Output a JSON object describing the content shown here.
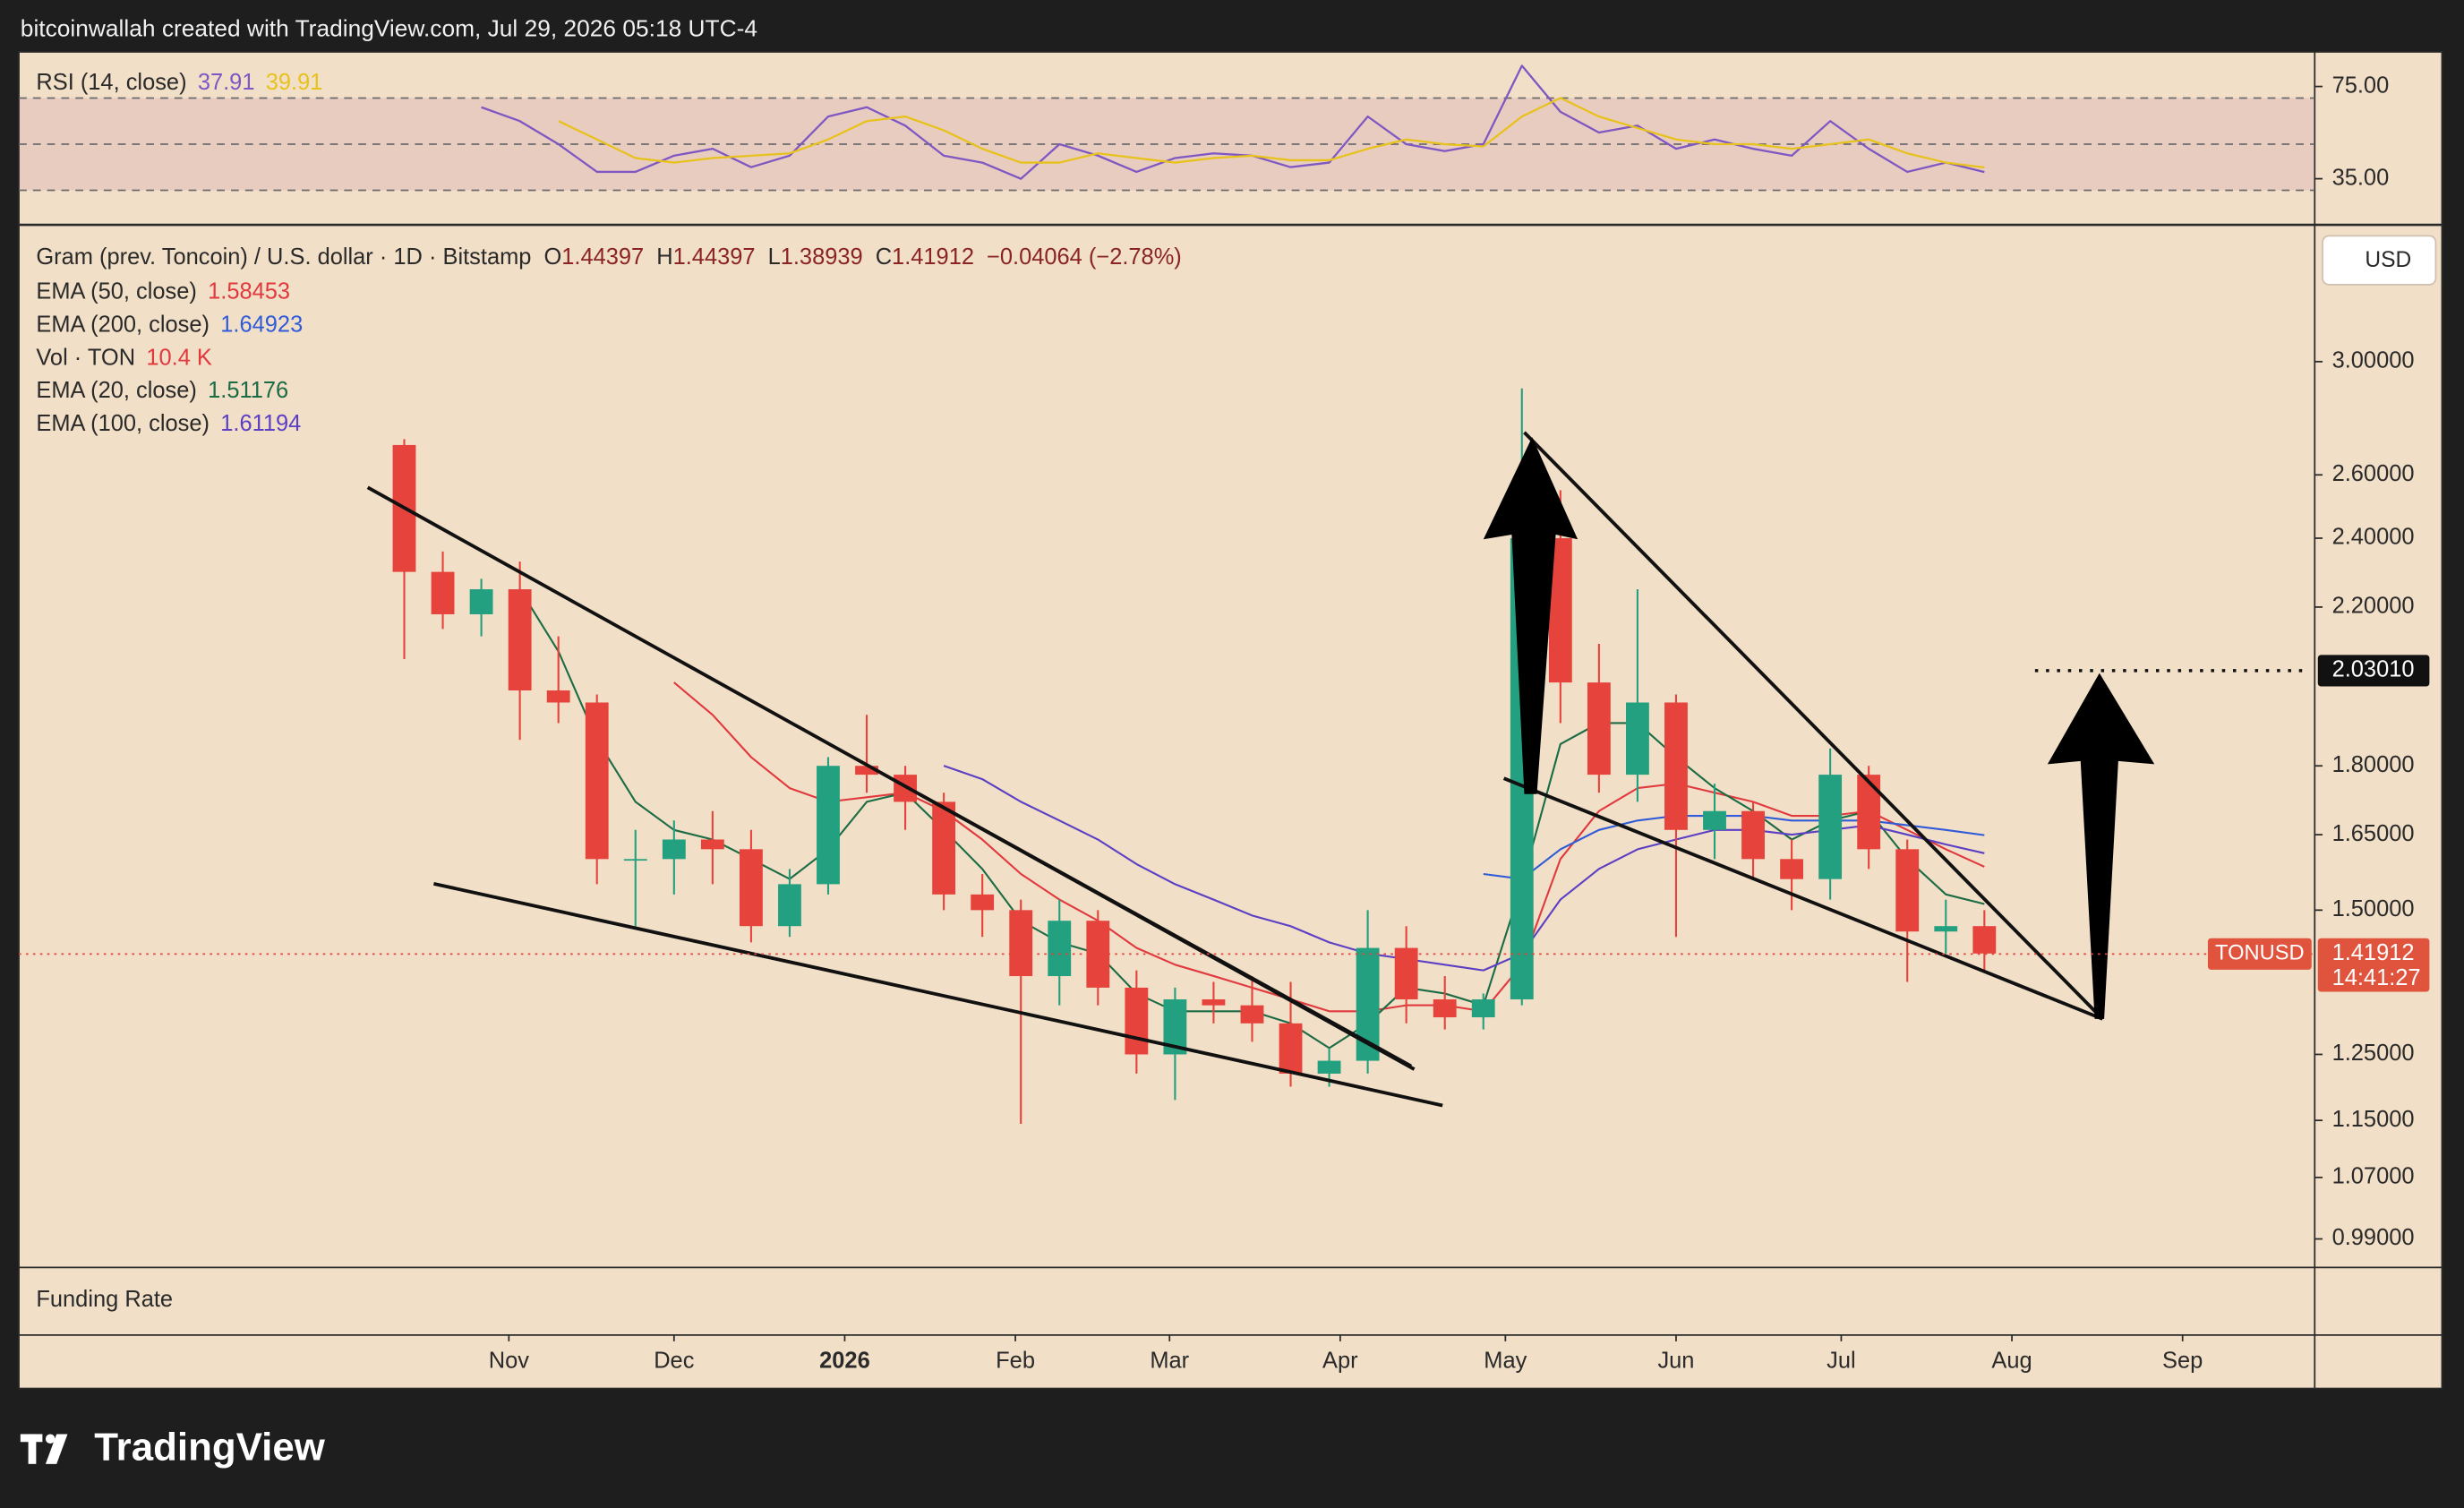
{
  "header": {
    "attribution": "bitcoinwallah created with TradingView.com, Jul 29, 2026 05:18 UTC-4"
  },
  "footer": {
    "brand": "TradingView"
  },
  "chart_data": {
    "type": "candlestick",
    "symbol": "Gram (prev. Toncoin) / U.S. dollar · 1D · Bitstamp",
    "ohlc_labels": [
      "O",
      "H",
      "L",
      "C"
    ],
    "ohlc": [
      1.44397,
      1.44397,
      1.38939,
      1.41912
    ],
    "change": "−0.04064 (−2.78%)",
    "currency": "USD",
    "ticker": "TONUSD",
    "countdown": "14:41:27",
    "volume_legend": {
      "name": "Vol · TON",
      "value": "10.4 K"
    },
    "funding_label": "Funding Rate",
    "log_scale": true,
    "up_color": "#22a07f",
    "down_color": "#e5433b",
    "x": [
      "2025-10-10",
      "2025-10-17",
      "2025-10-24",
      "2025-10-31",
      "2025-11-07",
      "2025-11-14",
      "2025-11-21",
      "2025-11-28",
      "2025-12-05",
      "2025-12-12",
      "2025-12-19",
      "2025-12-26",
      "2026-01-02",
      "2026-01-09",
      "2026-01-16",
      "2026-01-23",
      "2026-01-30",
      "2026-02-06",
      "2026-02-13",
      "2026-02-20",
      "2026-02-27",
      "2026-03-06",
      "2026-03-13",
      "2026-03-20",
      "2026-03-27",
      "2026-04-03",
      "2026-04-10",
      "2026-04-17",
      "2026-04-24",
      "2026-05-01",
      "2026-05-08",
      "2026-05-15",
      "2026-05-22",
      "2026-05-29",
      "2026-06-05",
      "2026-06-12",
      "2026-06-19",
      "2026-06-26",
      "2026-07-03",
      "2026-07-10",
      "2026-07-17",
      "2026-07-24"
    ],
    "open": [
      2.7,
      2.3,
      2.18,
      2.25,
      1.98,
      1.95,
      1.6,
      1.6,
      1.64,
      1.62,
      1.47,
      1.55,
      1.8,
      1.78,
      1.72,
      1.53,
      1.5,
      1.38,
      1.48,
      1.36,
      1.25,
      1.34,
      1.33,
      1.3,
      1.22,
      1.24,
      1.43,
      1.34,
      1.31,
      1.34,
      2.4,
      2.0,
      1.78,
      1.95,
      1.66,
      1.7,
      1.6,
      1.56,
      1.78,
      1.62,
      1.46,
      1.47
    ],
    "high": [
      2.72,
      2.36,
      2.28,
      2.33,
      2.12,
      1.97,
      1.66,
      1.68,
      1.7,
      1.66,
      1.58,
      1.82,
      1.92,
      1.8,
      1.74,
      1.57,
      1.52,
      1.52,
      1.5,
      1.39,
      1.36,
      1.37,
      1.38,
      1.37,
      1.26,
      1.5,
      1.47,
      1.38,
      1.35,
      2.9,
      2.55,
      2.1,
      2.25,
      1.97,
      1.76,
      1.72,
      1.64,
      1.84,
      1.8,
      1.64,
      1.52,
      1.5
    ],
    "low": [
      2.06,
      2.14,
      2.12,
      1.86,
      1.9,
      1.55,
      1.47,
      1.53,
      1.55,
      1.44,
      1.45,
      1.53,
      1.74,
      1.66,
      1.5,
      1.45,
      1.145,
      1.33,
      1.33,
      1.22,
      1.18,
      1.3,
      1.27,
      1.2,
      1.2,
      1.22,
      1.3,
      1.29,
      1.29,
      1.33,
      1.9,
      1.74,
      1.72,
      1.45,
      1.6,
      1.56,
      1.5,
      1.52,
      1.58,
      1.37,
      1.42,
      1.39
    ],
    "close": [
      2.3,
      2.18,
      2.25,
      1.98,
      1.95,
      1.6,
      1.6,
      1.64,
      1.62,
      1.47,
      1.55,
      1.8,
      1.78,
      1.72,
      1.53,
      1.5,
      1.38,
      1.48,
      1.36,
      1.25,
      1.34,
      1.33,
      1.3,
      1.22,
      1.24,
      1.43,
      1.34,
      1.31,
      1.34,
      2.4,
      2.0,
      1.78,
      1.95,
      1.66,
      1.7,
      1.6,
      1.56,
      1.78,
      1.62,
      1.46,
      1.47,
      1.42
    ],
    "series": [
      {
        "name": "EMA (50, close)",
        "color": "#e0393e",
        "values": [
          null,
          null,
          null,
          null,
          null,
          null,
          null,
          2.0,
          1.92,
          1.82,
          1.75,
          1.72,
          1.73,
          1.74,
          1.7,
          1.64,
          1.57,
          1.52,
          1.48,
          1.43,
          1.4,
          1.38,
          1.36,
          1.34,
          1.32,
          1.32,
          1.33,
          1.33,
          1.32,
          1.4,
          1.6,
          1.7,
          1.75,
          1.76,
          1.74,
          1.72,
          1.69,
          1.69,
          1.7,
          1.66,
          1.62,
          1.58453
        ]
      },
      {
        "name": "EMA (200, close)",
        "color": "#2f5bd9",
        "values": [
          null,
          null,
          null,
          null,
          null,
          null,
          null,
          null,
          null,
          null,
          null,
          null,
          null,
          null,
          null,
          null,
          null,
          null,
          null,
          null,
          null,
          null,
          null,
          null,
          null,
          null,
          null,
          null,
          1.57,
          1.56,
          1.62,
          1.66,
          1.68,
          1.69,
          1.69,
          1.69,
          1.68,
          1.68,
          1.68,
          1.67,
          1.66,
          1.64923
        ]
      },
      {
        "name": "EMA (20, close)",
        "color": "#1b6b45",
        "values": [
          null,
          null,
          null,
          2.25,
          2.08,
          1.86,
          1.72,
          1.66,
          1.64,
          1.6,
          1.56,
          1.62,
          1.72,
          1.74,
          1.66,
          1.58,
          1.48,
          1.44,
          1.42,
          1.35,
          1.32,
          1.32,
          1.32,
          1.3,
          1.26,
          1.3,
          1.36,
          1.35,
          1.33,
          1.55,
          1.85,
          1.9,
          1.9,
          1.82,
          1.75,
          1.7,
          1.64,
          1.68,
          1.7,
          1.6,
          1.53,
          1.51176
        ]
      },
      {
        "name": "EMA (100, close)",
        "color": "#5b3fc4",
        "values": [
          null,
          null,
          null,
          null,
          null,
          null,
          null,
          null,
          null,
          null,
          null,
          null,
          null,
          null,
          1.8,
          1.77,
          1.72,
          1.68,
          1.64,
          1.59,
          1.55,
          1.52,
          1.49,
          1.47,
          1.44,
          1.42,
          1.41,
          1.4,
          1.39,
          1.42,
          1.52,
          1.58,
          1.62,
          1.64,
          1.66,
          1.66,
          1.65,
          1.66,
          1.67,
          1.65,
          1.63,
          1.61194
        ]
      }
    ],
    "ylim": [
      0.955,
      3.566
    ],
    "yticks": [
      {
        "value": 3,
        "label": "3.00000"
      },
      {
        "value": 2.6,
        "label": "2.60000"
      },
      {
        "value": 2.4,
        "label": "2.40000"
      },
      {
        "value": 2.2,
        "label": "2.20000"
      },
      {
        "value": 1.8,
        "label": "1.80000"
      },
      {
        "value": 1.65,
        "label": "1.65000"
      },
      {
        "value": 1.5,
        "label": "1.50000"
      },
      {
        "value": 1.25,
        "label": "1.25000"
      },
      {
        "value": 1.15,
        "label": "1.15000"
      },
      {
        "value": 1.07,
        "label": "1.07000"
      },
      {
        "value": 0.99,
        "label": "0.99000"
      }
    ],
    "target": {
      "value": 2.0301,
      "label": "2.03010"
    },
    "xlim": [
      "2025-08-04",
      "2026-09-25"
    ],
    "xticks": [
      {
        "value": "2025-11-01",
        "label": "Nov"
      },
      {
        "value": "2025-12-01",
        "label": "Dec"
      },
      {
        "value": "2026-01-01",
        "label": "2026"
      },
      {
        "value": "2026-02-01",
        "label": "Feb"
      },
      {
        "value": "2026-03-01",
        "label": "Mar"
      },
      {
        "value": "2026-04-01",
        "label": "Apr"
      },
      {
        "value": "2026-05-01",
        "label": "May"
      },
      {
        "value": "2026-06-01",
        "label": "Jun"
      },
      {
        "value": "2026-07-01",
        "label": "Jul"
      },
      {
        "value": "2026-08-01",
        "label": "Aug"
      },
      {
        "value": "2026-09-01",
        "label": "Sep"
      }
    ],
    "rsi": {
      "name": "RSI (14, close)",
      "series": [
        {
          "color": "#7e57c2",
          "values": [
            null,
            null,
            66,
            60,
            50,
            38,
            38,
            45,
            48,
            40,
            45,
            62,
            66,
            58,
            45,
            42,
            35,
            50,
            45,
            38,
            44,
            46,
            45,
            40,
            42,
            62,
            50,
            47,
            50,
            84,
            64,
            55,
            58,
            48,
            52,
            48,
            45,
            60,
            48,
            38,
            42,
            37.91
          ]
        },
        {
          "color": "#e8c21c",
          "values": [
            null,
            null,
            null,
            null,
            60,
            52,
            44,
            42,
            44,
            45,
            46,
            52,
            60,
            62,
            56,
            48,
            42,
            42,
            46,
            44,
            42,
            44,
            45,
            43,
            43,
            48,
            52,
            50,
            49,
            62,
            70,
            62,
            57,
            52,
            50,
            50,
            48,
            50,
            52,
            46,
            42,
            39.91
          ]
        }
      ],
      "levels": [
        70,
        50,
        30
      ],
      "ylim": [
        15,
        90
      ],
      "yticks": [
        {
          "value": 75,
          "label": "75.00"
        },
        {
          "value": 35,
          "label": "35.00"
        }
      ]
    }
  }
}
